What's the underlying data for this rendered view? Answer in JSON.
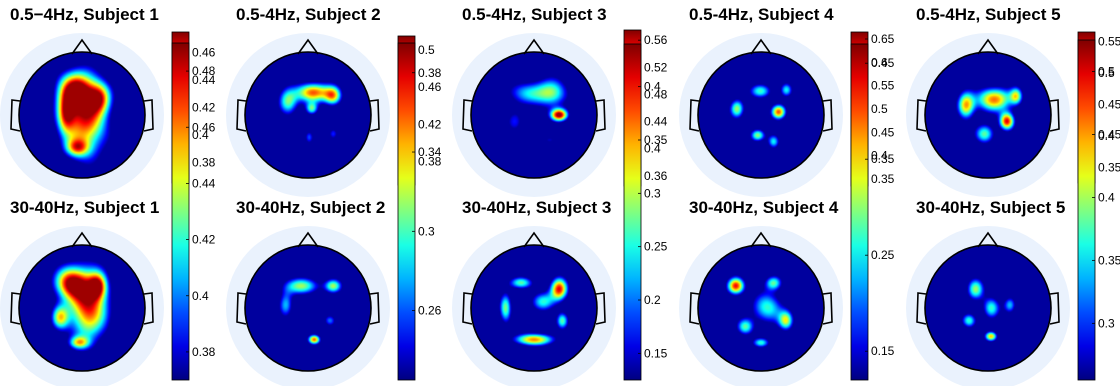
{
  "chart_data": {
    "type": "heatmap",
    "colormap": "jet",
    "colors": {
      "outside": "#eaf2fd",
      "inside": "#00008f",
      "outline": "#000000"
    },
    "panels": [
      {
        "title": "0.5−4Hz, Subject 1",
        "ticks": [
          "0.46",
          "0.44",
          "0.42",
          "0.4",
          "0.38"
        ],
        "tick_values": [
          0.46,
          0.44,
          0.42,
          0.4,
          0.38
        ],
        "range": [
          0.365,
          0.475
        ],
        "blobs": [
          [
            0.05,
            -0.05,
            0.36,
            0.62,
            0.88
          ],
          [
            -0.12,
            0.4,
            0.28,
            0.3,
            0.75
          ],
          [
            -0.26,
            0.0,
            0.14,
            0.3,
            0.55
          ],
          [
            0.28,
            0.28,
            0.18,
            0.24,
            0.55
          ],
          [
            -0.08,
            -0.52,
            0.18,
            0.14,
            0.5
          ]
        ]
      },
      {
        "title": "0.5-4Hz, Subject 2",
        "ticks": [
          "0.5",
          "0.46",
          "0.42",
          "0.38"
        ],
        "tick_values": [
          0.5,
          0.46,
          0.42,
          0.38
        ],
        "range": [
          0.355,
          0.515
        ],
        "blobs": [
          [
            0.08,
            0.36,
            0.28,
            0.16,
            0.85
          ],
          [
            -0.32,
            0.2,
            0.16,
            0.22,
            0.6
          ],
          [
            0.4,
            0.3,
            0.14,
            0.16,
            0.65
          ],
          [
            0.06,
            0.1,
            0.1,
            0.1,
            0.5
          ],
          [
            0.02,
            -0.35,
            0.08,
            0.12,
            0.4
          ],
          [
            0.4,
            -0.3,
            0.08,
            0.1,
            0.3
          ]
        ]
      },
      {
        "title": "0.5-4Hz, Subject 3",
        "ticks": [
          "0.56",
          "0.52",
          "0.48",
          "0.44",
          "0.4",
          "0.36"
        ],
        "tick_values": [
          0.56,
          0.52,
          0.48,
          0.44,
          0.4,
          0.36
        ],
        "range": [
          0.345,
          0.575
        ],
        "blobs": [
          [
            0.4,
            0.0,
            0.14,
            0.1,
            0.95
          ],
          [
            -0.1,
            0.35,
            0.38,
            0.2,
            0.45
          ],
          [
            0.3,
            0.35,
            0.25,
            0.25,
            0.5
          ],
          [
            -0.3,
            -0.1,
            0.15,
            0.2,
            0.3
          ],
          [
            0.25,
            -0.4,
            0.15,
            0.1,
            0.28
          ],
          [
            -0.15,
            -0.55,
            0.1,
            0.06,
            0.22
          ]
        ]
      },
      {
        "title": "0.5-4Hz, Subject 4",
        "ticks": [
          "0.65",
          "0.6",
          "0.55",
          "0.5",
          "0.45",
          "0.4",
          "0.35"
        ],
        "tick_values": [
          0.65,
          0.6,
          0.55,
          0.5,
          0.45,
          0.4,
          0.35
        ],
        "range": [
          0.335,
          0.665
        ],
        "blobs": [
          [
            0.28,
            0.05,
            0.12,
            0.12,
            0.82
          ],
          [
            -0.38,
            0.1,
            0.12,
            0.16,
            0.62
          ],
          [
            -0.05,
            -0.32,
            0.12,
            0.1,
            0.6
          ],
          [
            0.2,
            -0.42,
            0.1,
            0.12,
            0.55
          ],
          [
            0.0,
            0.38,
            0.18,
            0.12,
            0.55
          ],
          [
            0.4,
            0.4,
            0.1,
            0.12,
            0.5
          ]
        ]
      },
      {
        "title": "0.5-4Hz, Subject 5",
        "ticks": [
          "0.55",
          "0.5",
          "0.45",
          "0.4",
          "0.35"
        ],
        "tick_values": [
          0.55,
          0.5,
          0.45,
          0.4,
          0.35
        ],
        "range": [
          0.325,
          0.565
        ],
        "blobs": [
          [
            0.1,
            0.25,
            0.3,
            0.2,
            0.8
          ],
          [
            -0.35,
            0.15,
            0.14,
            0.22,
            0.75
          ],
          [
            0.3,
            -0.1,
            0.12,
            0.14,
            0.9
          ],
          [
            -0.05,
            -0.3,
            0.16,
            0.16,
            0.6
          ],
          [
            0.45,
            0.3,
            0.1,
            0.14,
            0.55
          ]
        ]
      },
      {
        "title": "30-40Hz, Subject 1",
        "ticks": [
          "0.48",
          "0.46",
          "0.44",
          "0.42",
          "0.4",
          "0.38"
        ],
        "tick_values": [
          0.48,
          0.46,
          0.44,
          0.42,
          0.4,
          0.38
        ],
        "range": [
          0.37,
          0.49
        ],
        "blobs": [
          [
            0.1,
            0.05,
            0.32,
            0.58,
            0.92
          ],
          [
            -0.2,
            0.4,
            0.26,
            0.26,
            0.8
          ],
          [
            -0.35,
            -0.15,
            0.14,
            0.2,
            0.6
          ],
          [
            0.25,
            0.35,
            0.14,
            0.2,
            0.6
          ],
          [
            -0.05,
            -0.55,
            0.16,
            0.1,
            0.5
          ]
        ]
      },
      {
        "title": "30-40Hz, Subject 2",
        "ticks": [
          "0.38",
          "0.34",
          "0.3",
          "0.26"
        ],
        "tick_values": [
          0.38,
          0.34,
          0.3,
          0.26
        ],
        "range": [
          0.225,
          0.395
        ],
        "blobs": [
          [
            -0.1,
            0.35,
            0.3,
            0.14,
            0.6
          ],
          [
            0.4,
            0.35,
            0.14,
            0.12,
            0.6
          ],
          [
            -0.35,
            0.05,
            0.12,
            0.22,
            0.45
          ],
          [
            0.1,
            -0.5,
            0.1,
            0.08,
            0.85
          ],
          [
            0.35,
            -0.2,
            0.1,
            0.1,
            0.4
          ]
        ]
      },
      {
        "title": "30-40Hz, Subject 3",
        "ticks": [
          "0.4",
          "0.35",
          "0.3",
          "0.25",
          "0.2",
          "0.15"
        ],
        "tick_values": [
          0.4,
          0.35,
          0.3,
          0.25,
          0.2,
          0.15
        ],
        "range": [
          0.125,
          0.44
        ],
        "blobs": [
          [
            0.4,
            0.3,
            0.14,
            0.18,
            0.9
          ],
          [
            0.0,
            -0.5,
            0.32,
            0.1,
            0.8
          ],
          [
            -0.45,
            0.0,
            0.1,
            0.25,
            0.6
          ],
          [
            0.15,
            0.1,
            0.2,
            0.16,
            0.5
          ],
          [
            -0.2,
            0.4,
            0.2,
            0.1,
            0.55
          ],
          [
            0.45,
            -0.2,
            0.1,
            0.14,
            0.55
          ]
        ]
      },
      {
        "title": "30-40Hz, Subject 4",
        "ticks": [
          "0.45",
          "0.35",
          "0.25",
          "0.15"
        ],
        "tick_values": [
          0.45,
          0.35,
          0.25,
          0.15
        ],
        "range": [
          0.12,
          0.47
        ],
        "blobs": [
          [
            -0.4,
            0.35,
            0.14,
            0.14,
            0.92
          ],
          [
            0.1,
            0.0,
            0.26,
            0.26,
            0.55
          ],
          [
            0.4,
            -0.2,
            0.12,
            0.16,
            0.6
          ],
          [
            -0.25,
            -0.3,
            0.14,
            0.14,
            0.55
          ],
          [
            0.2,
            0.4,
            0.14,
            0.12,
            0.55
          ],
          [
            0.0,
            -0.55,
            0.14,
            0.08,
            0.5
          ]
        ]
      },
      {
        "title": "30-40Hz, Subject 5",
        "ticks": [
          "0.5",
          "0.45",
          "0.4",
          "0.35",
          "0.3"
        ],
        "tick_values": [
          0.5,
          0.45,
          0.4,
          0.35,
          0.3
        ],
        "range": [
          0.255,
          0.525
        ],
        "blobs": [
          [
            -0.2,
            0.3,
            0.14,
            0.18,
            0.6
          ],
          [
            0.05,
            0.0,
            0.14,
            0.18,
            0.55
          ],
          [
            0.35,
            0.05,
            0.1,
            0.14,
            0.45
          ],
          [
            -0.3,
            -0.2,
            0.12,
            0.12,
            0.55
          ],
          [
            0.05,
            -0.45,
            0.1,
            0.08,
            0.75
          ]
        ]
      }
    ]
  }
}
